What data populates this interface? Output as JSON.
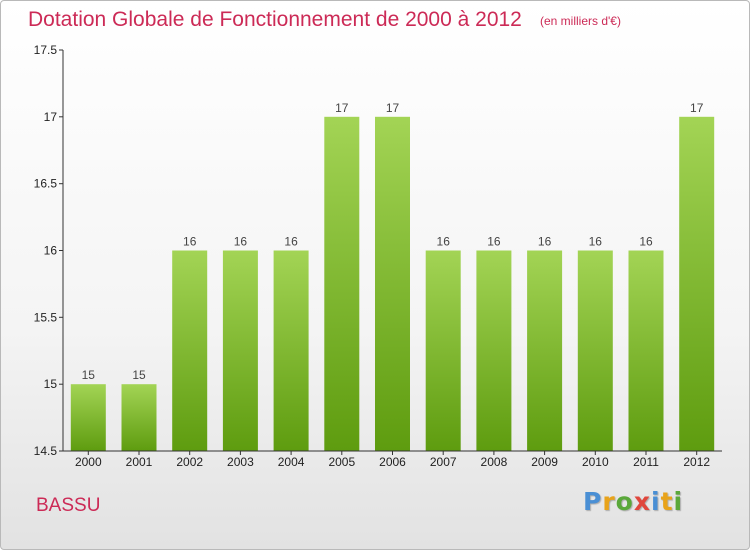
{
  "header": {
    "title": "Dotation Globale de Fonctionnement de 2000 à 2012",
    "unit": "(en milliers d'€)"
  },
  "footer": {
    "commune": "BASSU",
    "logo": "Proxiti"
  },
  "colors": {
    "title": "#cc2a56",
    "bar_light": "#a3d455",
    "bar_dark": "#5e9c0f",
    "axis": "#333333",
    "logo_letters": [
      "#4a8fd4",
      "#e8a31a",
      "#5aa83a",
      "#e0463c",
      "#4a8fd4",
      "#e8a31a",
      "#5aa83a"
    ]
  },
  "chart_data": {
    "type": "bar",
    "title": "Dotation Globale de Fonctionnement de 2000 à 2012",
    "subtitle": "(en milliers d'€)",
    "xlabel": "",
    "ylabel": "",
    "categories": [
      "2000",
      "2001",
      "2002",
      "2003",
      "2004",
      "2005",
      "2006",
      "2007",
      "2008",
      "2009",
      "2010",
      "2011",
      "2012"
    ],
    "values": [
      15,
      15,
      16,
      16,
      16,
      17,
      17,
      16,
      16,
      16,
      16,
      16,
      17
    ],
    "value_labels": [
      "15",
      "15",
      "16",
      "16",
      "16",
      "17",
      "17",
      "16",
      "16",
      "16",
      "16",
      "16",
      "17"
    ],
    "ylim": [
      14.5,
      17.5
    ],
    "yticks": [
      14.5,
      15,
      15.5,
      16,
      16.5,
      17,
      17.5
    ],
    "ytick_labels": [
      "14.5",
      "15",
      "15.5",
      "16",
      "16.5",
      "17",
      "17.5"
    ],
    "grid": false,
    "legend": "none"
  }
}
